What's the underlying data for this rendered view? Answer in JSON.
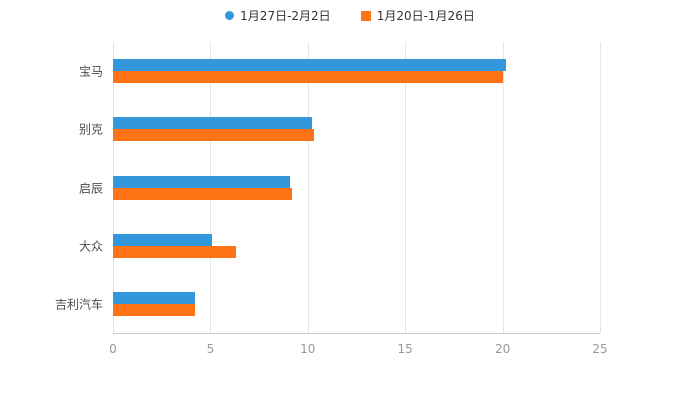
{
  "chart_data": {
    "type": "bar",
    "orientation": "horizontal",
    "title": "",
    "categories": [
      "宝马",
      "别克",
      "启辰",
      "大众",
      "吉利汽车"
    ],
    "series": [
      {
        "name": "1月27日-2月2日",
        "color": "#3398DB",
        "marker": "circle",
        "values": [
          20.2,
          10.2,
          9.1,
          5.1,
          4.2
        ]
      },
      {
        "name": "1月20日-1月26日",
        "color": "#FF7317",
        "marker": "square",
        "values": [
          20.0,
          10.3,
          9.2,
          6.3,
          4.2
        ]
      }
    ],
    "xticks": [
      0,
      5,
      10,
      15,
      20,
      25
    ],
    "xlim": [
      0,
      25
    ],
    "grid": true,
    "legend_position": "top",
    "background": "#ffffff"
  }
}
